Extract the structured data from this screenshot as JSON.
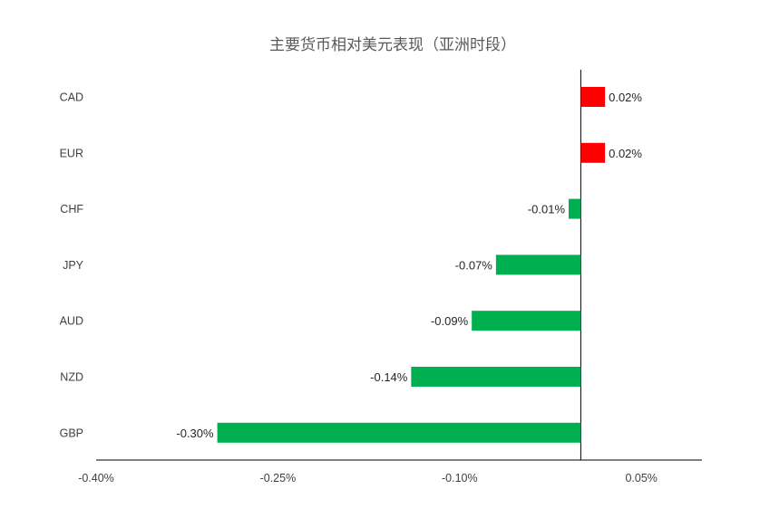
{
  "chart_data": {
    "type": "bar",
    "orientation": "horizontal",
    "title": "主要货币相对美元表现（亚洲时段）",
    "categories": [
      "CAD",
      "EUR",
      "CHF",
      "JPY",
      "AUD",
      "NZD",
      "GBP"
    ],
    "values": [
      0.02,
      0.02,
      -0.01,
      -0.07,
      -0.09,
      -0.14,
      -0.3
    ],
    "value_labels": [
      "0.02%",
      "0.02%",
      "-0.01%",
      "-0.07%",
      "-0.09%",
      "-0.14%",
      "-0.30%"
    ],
    "xlim": [
      -0.4,
      0.1
    ],
    "xticks": [
      -0.4,
      -0.25,
      -0.1,
      0.05
    ],
    "xtick_labels": [
      "-0.40%",
      "-0.25%",
      "-0.10%",
      "0.05%"
    ],
    "grid": false,
    "legend": "none",
    "colors": {
      "positive": "#FF0000",
      "negative": "#00B050"
    }
  }
}
